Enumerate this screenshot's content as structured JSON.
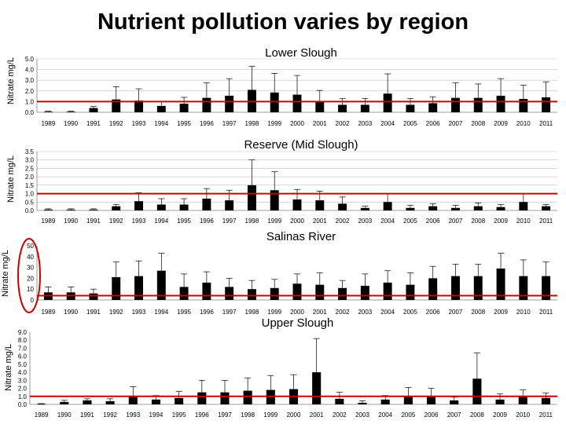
{
  "title": "Nutrient pollution varies by region",
  "colors": {
    "bar": "#000000",
    "threshold": "#cc0000",
    "highlight": "#cc0000",
    "axis": "#7f7f7f",
    "grid": "#bfbfbf"
  },
  "chart_data": [
    {
      "type": "bar",
      "title": "Lower Slough",
      "ylabel": "Nitrate mg/L",
      "categories": [
        "1989",
        "1990",
        "1991",
        "1992",
        "1993",
        "1994",
        "1995",
        "1996",
        "1997",
        "1998",
        "1999",
        "2000",
        "2001",
        "2002",
        "2003",
        "2004",
        "2005",
        "2006",
        "2007",
        "2008",
        "2009",
        "2010",
        "2011"
      ],
      "values": [
        0.05,
        0.05,
        0.4,
        1.2,
        1.1,
        0.6,
        0.8,
        1.35,
        1.55,
        2.1,
        1.85,
        1.65,
        1.05,
        0.7,
        0.7,
        1.75,
        0.7,
        0.85,
        1.35,
        1.35,
        1.55,
        1.25,
        1.4
      ],
      "error": [
        0.05,
        0.05,
        0.15,
        1.2,
        1.1,
        0.4,
        0.6,
        1.4,
        1.6,
        2.2,
        1.8,
        1.8,
        1.0,
        0.6,
        0.6,
        1.85,
        0.6,
        0.6,
        1.4,
        1.3,
        1.6,
        1.3,
        1.45
      ],
      "threshold": 1.0,
      "ylim": [
        0,
        5
      ],
      "yticks": [
        "0.0",
        "1.0",
        "2.0",
        "3.0",
        "4.0",
        "5.0"
      ],
      "grid": true
    },
    {
      "type": "bar",
      "title": "Reserve (Mid Slough)",
      "ylabel": "Nitrate mg/L",
      "categories": [
        "1989",
        "1990",
        "1991",
        "1992",
        "1993",
        "1994",
        "1995",
        "1996",
        "1997",
        "1998",
        "1999",
        "2000",
        "2001",
        "2002",
        "2003",
        "2004",
        "2005",
        "2006",
        "2007",
        "2008",
        "2009",
        "2010",
        "2011"
      ],
      "values": [
        0.05,
        0.05,
        0.05,
        0.25,
        0.55,
        0.35,
        0.35,
        0.7,
        0.6,
        1.5,
        1.2,
        0.65,
        0.6,
        0.4,
        0.15,
        0.5,
        0.15,
        0.25,
        0.15,
        0.25,
        0.2,
        0.5,
        0.25
      ],
      "error": [
        0.05,
        0.05,
        0.05,
        0.1,
        0.5,
        0.35,
        0.35,
        0.6,
        0.6,
        1.5,
        1.1,
        0.6,
        0.55,
        0.4,
        0.1,
        0.5,
        0.15,
        0.15,
        0.15,
        0.2,
        0.15,
        0.5,
        0.1
      ],
      "threshold": 1.0,
      "ylim": [
        0,
        3.5
      ],
      "yticks": [
        "0.0",
        "0.5",
        "1.0",
        "1.5",
        "2.0",
        "2.5",
        "3.0",
        "3.5"
      ],
      "grid": true
    },
    {
      "type": "bar",
      "title": "Salinas River",
      "ylabel": "Nitrate mg/L",
      "categories": [
        "1989",
        "1990",
        "1991",
        "1992",
        "1993",
        "1994",
        "1995",
        "1996",
        "1997",
        "1998",
        "1999",
        "2000",
        "2001",
        "2002",
        "2003",
        "2004",
        "2005",
        "2006",
        "2007",
        "2008",
        "2009",
        "2010",
        "2011"
      ],
      "values": [
        7,
        7,
        6,
        21,
        22,
        27,
        12,
        16,
        12,
        10,
        11,
        15,
        14,
        11,
        13,
        16,
        14,
        20,
        22,
        22,
        29,
        22,
        22
      ],
      "error": [
        5,
        5,
        4,
        14,
        14,
        16,
        12,
        10,
        8,
        8,
        8,
        9,
        11,
        7,
        11,
        11,
        11,
        11,
        11,
        11,
        14,
        15,
        13
      ],
      "threshold": 4,
      "ylim": [
        0,
        50
      ],
      "yticks": [
        "0",
        "10",
        "20",
        "30",
        "40",
        "50"
      ],
      "grid": false,
      "annotation": "circled y-axis"
    },
    {
      "type": "bar",
      "title": "Upper Slough",
      "ylabel": "Nitrate mg/L",
      "categories": [
        "1989",
        "1990",
        "1991",
        "1992",
        "1993",
        "1994",
        "1995",
        "1996",
        "1997",
        "1998",
        "1999",
        "2000",
        "2001",
        "2002",
        "2003",
        "2004",
        "2005",
        "2006",
        "2007",
        "2008",
        "2009",
        "2010",
        "2011"
      ],
      "values": [
        0.05,
        0.3,
        0.5,
        0.4,
        1.0,
        0.6,
        0.8,
        1.5,
        1.5,
        1.7,
        1.8,
        1.9,
        4.0,
        0.7,
        0.2,
        0.6,
        1.0,
        1.0,
        0.5,
        3.2,
        0.6,
        1.0,
        0.8
      ],
      "error": [
        0.05,
        0.2,
        0.2,
        0.3,
        1.2,
        0.5,
        0.8,
        1.5,
        1.5,
        1.6,
        1.8,
        1.8,
        4.2,
        0.8,
        0.25,
        0.5,
        1.1,
        1.0,
        0.4,
        3.2,
        0.7,
        0.8,
        0.6
      ],
      "threshold": 1.0,
      "ylim": [
        0,
        9
      ],
      "yticks": [
        "0.0",
        "1.0",
        "2.0",
        "3.0",
        "4.0",
        "5.0",
        "6.0",
        "7.0",
        "8.0",
        "9.0"
      ],
      "grid": false
    }
  ]
}
